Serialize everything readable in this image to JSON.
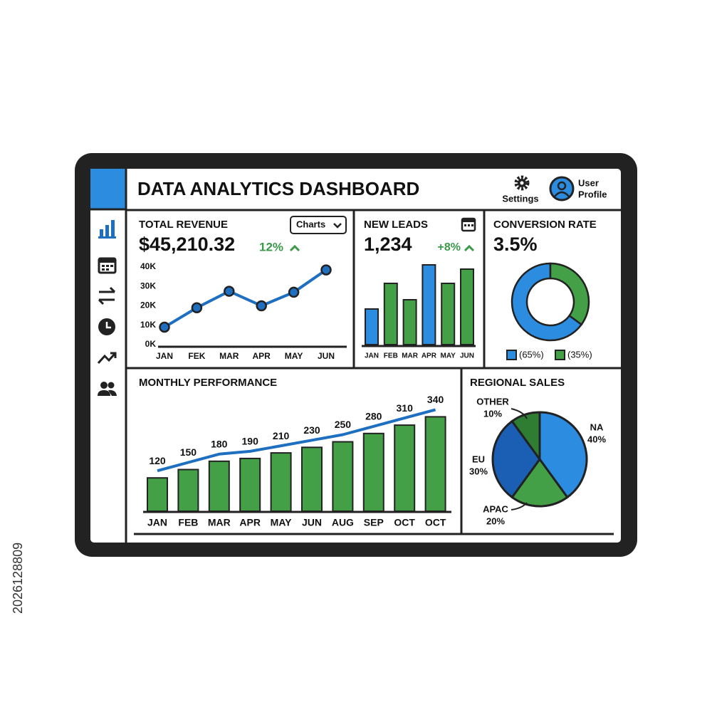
{
  "header": {
    "title": "DATA ANALYTICS DASHBOARD",
    "settings": "Settings",
    "profile_lines": [
      "User",
      "Profile"
    ]
  },
  "watermark": "2026128809",
  "chart_data": [
    {
      "type": "line",
      "title": "TOTAL REVENUE",
      "value": "$45,210.32",
      "change": "12%",
      "button": "Charts",
      "categories": [
        "JAN",
        "FEK",
        "MAR",
        "APR",
        "MAY",
        "JUN"
      ],
      "values": [
        9,
        19,
        27.5,
        20,
        27,
        38.5
      ],
      "color": "#1f6fc1",
      "ylim": [
        0,
        40
      ],
      "yticks": [
        {
          "value": 0,
          "label": "0K"
        },
        {
          "value": 10,
          "label": "10K"
        },
        {
          "value": 20,
          "label": "20K"
        },
        {
          "value": 30,
          "label": "30K"
        },
        {
          "value": 40,
          "label": "40K"
        }
      ]
    },
    {
      "type": "bar",
      "title": "NEW LEADS",
      "value": "1,234",
      "change": "+8%",
      "categories": [
        "JAN",
        "FEB",
        "MAR",
        "APR",
        "MAY",
        "JUN"
      ],
      "values": [
        50,
        86,
        63,
        112,
        86,
        106
      ],
      "colors": [
        "#2b8ce0",
        "#43a047",
        "#43a047",
        "#2b8ce0",
        "#43a047",
        "#43a047"
      ]
    },
    {
      "type": "donut",
      "title": "CONVERSION RATE",
      "value": "3.5%",
      "values": [
        65,
        35
      ],
      "value_labels": [
        "(65%)",
        "(35%)"
      ],
      "colors": [
        "#2b8ce0",
        "#43a047"
      ]
    },
    {
      "type": "combo",
      "title": "MONTHLY PERFORMANCE",
      "categories": [
        "JAN",
        "FEB",
        "MAR",
        "APR",
        "MAY",
        "JUN",
        "AUG",
        "SEP",
        "OCT",
        "OCT"
      ],
      "values": [
        120,
        150,
        180,
        190,
        210,
        230,
        250,
        280,
        310,
        340
      ],
      "color": "#43a047",
      "trend_color": "#1f6fc1"
    },
    {
      "type": "pie",
      "title": "REGIONAL SALES",
      "categories": [
        "NA",
        "APAC",
        "EU",
        "OTHER"
      ],
      "values": [
        40,
        20,
        30,
        10
      ],
      "value_labels": [
        "40%",
        "20%",
        "30%",
        "10%"
      ],
      "colors": [
        "#2b8ce0",
        "#43a047",
        "#1a5fb4",
        "#2e7d32"
      ]
    }
  ]
}
